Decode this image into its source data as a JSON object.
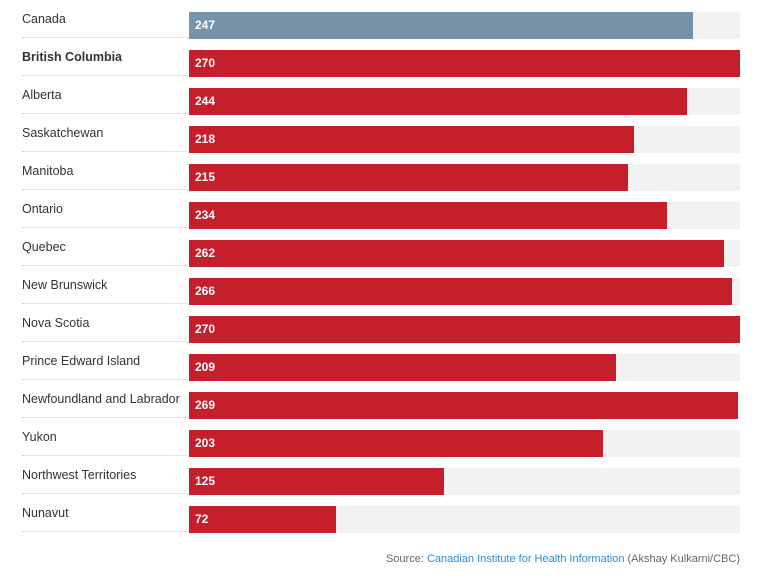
{
  "chart_data": {
    "type": "bar",
    "orientation": "horizontal",
    "categories": [
      "Canada",
      "British Columbia",
      "Alberta",
      "Saskatchewan",
      "Manitoba",
      "Ontario",
      "Quebec",
      "New Brunswick",
      "Nova Scotia",
      "Prince Edward Island",
      "Newfoundland and Labrador",
      "Yukon",
      "Northwest Territories",
      "Nunavut"
    ],
    "values": [
      247,
      270,
      244,
      218,
      215,
      234,
      262,
      266,
      270,
      209,
      269,
      203,
      125,
      72
    ],
    "highlighted_category": "British Columbia",
    "xlim": [
      0,
      270
    ],
    "grid": false,
    "colors": {
      "national": "#7693aa",
      "province": "#c41f2b",
      "track": "#f2f2f2"
    }
  },
  "source": {
    "prefix": "Source: ",
    "link_text": "Canadian Institute for Health Information",
    "suffix": " (Akshay Kulkarni/CBC)",
    "link_color": "#2b8ccf"
  }
}
